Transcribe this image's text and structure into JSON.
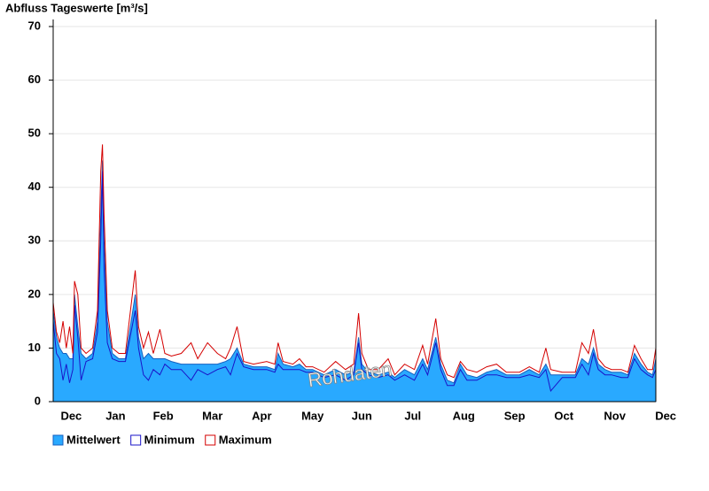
{
  "chart_data": {
    "type": "line",
    "title": "Abfluss Tageswerte [m³/s]",
    "annotation": "Rohdaten",
    "x": [
      0,
      2,
      4,
      6,
      8,
      10,
      12,
      13,
      15,
      17,
      20,
      24,
      27,
      29,
      30,
      31,
      33,
      36,
      40,
      44,
      50,
      52,
      55,
      58,
      61,
      65,
      68,
      72,
      78,
      84,
      88,
      94,
      100,
      105,
      108,
      112,
      116,
      122,
      130,
      135,
      137,
      140,
      146,
      150,
      154,
      158,
      165,
      172,
      178,
      183,
      186,
      188,
      192,
      198,
      204,
      208,
      214,
      220,
      225,
      228,
      233,
      236,
      240,
      244,
      248,
      252,
      258,
      264,
      270,
      276,
      284,
      290,
      296,
      300,
      303,
      310,
      318,
      322,
      326,
      329,
      332,
      336,
      340,
      346,
      350,
      354,
      358,
      362,
      365,
      367
    ],
    "series": [
      {
        "name": "Mittelwert",
        "color": "#29a9ff",
        "style": "area",
        "values": [
          17,
          12,
          10,
          9,
          9,
          8,
          8,
          20,
          14,
          9,
          8,
          9,
          15,
          35,
          45,
          30,
          15,
          9,
          8,
          8,
          20,
          12,
          8,
          9,
          8,
          8,
          8,
          7.5,
          7,
          7,
          7,
          7,
          7,
          7.5,
          8,
          10,
          7,
          6.5,
          6.5,
          6,
          9,
          7,
          6.5,
          7,
          6,
          6,
          5,
          6,
          5,
          5.5,
          12,
          7,
          5.5,
          5,
          5.5,
          4.5,
          6,
          5,
          8,
          6,
          12,
          7,
          4,
          3.5,
          7,
          5,
          4.5,
          5.5,
          6,
          5,
          5,
          6,
          5,
          7,
          5,
          5,
          5,
          8,
          7,
          10,
          7,
          6,
          5.5,
          5.5,
          5,
          9,
          7,
          5.5,
          5,
          8
        ]
      },
      {
        "name": "Minimum",
        "color": "#1a14c8",
        "style": "line",
        "values": [
          15,
          9,
          8,
          4,
          7,
          3.5,
          6,
          18,
          12,
          4,
          7.5,
          8,
          13,
          30,
          43,
          25,
          11,
          8,
          7.5,
          7.5,
          17,
          10,
          5,
          4,
          6,
          5,
          7,
          6,
          6,
          4,
          6,
          5,
          6,
          6.5,
          5,
          9,
          6.5,
          6,
          6,
          5.5,
          7,
          6,
          6,
          6,
          5.5,
          5.5,
          4.5,
          5,
          4,
          5,
          11,
          6,
          5,
          4.5,
          5,
          4,
          5,
          4,
          7,
          5,
          11,
          6,
          3,
          3,
          6,
          4,
          4,
          5,
          5,
          4.5,
          4.5,
          5,
          4.5,
          6,
          2,
          4.5,
          4.5,
          7,
          5,
          9,
          6,
          5,
          5,
          4.5,
          4.5,
          8,
          6,
          5,
          4.5,
          6
        ]
      },
      {
        "name": "Maximum",
        "color": "#d40000",
        "style": "line",
        "values": [
          18.5,
          13,
          11,
          15,
          10,
          14,
          9,
          22.5,
          20,
          10,
          9,
          10,
          17,
          43,
          48,
          35,
          17,
          10,
          9,
          9,
          24.5,
          14,
          10,
          13,
          9,
          13.5,
          9,
          8.5,
          9,
          11,
          8,
          11,
          9,
          8,
          10,
          14,
          7.5,
          7,
          7.5,
          7,
          11,
          7.5,
          7,
          8,
          6.5,
          6.5,
          5.5,
          7.5,
          6,
          7,
          16.5,
          9,
          6,
          6,
          8,
          5,
          7,
          6,
          10.5,
          7,
          15.5,
          8,
          5,
          4.5,
          7.5,
          6,
          5.5,
          6.5,
          7,
          5.5,
          5.5,
          6.5,
          5.5,
          10,
          6,
          5.5,
          5.5,
          11,
          9,
          13.5,
          8,
          6.5,
          6,
          6,
          5.5,
          10.5,
          8,
          6,
          6,
          10
        ]
      }
    ],
    "xlim": [
      0,
      367
    ],
    "xticks": [
      {
        "value": 11,
        "label": "Dec"
      },
      {
        "value": 38,
        "label": "Jan"
      },
      {
        "value": 67,
        "label": "Feb"
      },
      {
        "value": 97,
        "label": "Mar"
      },
      {
        "value": 127,
        "label": "Apr"
      },
      {
        "value": 158,
        "label": "May"
      },
      {
        "value": 188,
        "label": "Jun"
      },
      {
        "value": 219,
        "label": "Jul"
      },
      {
        "value": 250,
        "label": "Aug"
      },
      {
        "value": 281,
        "label": "Sep"
      },
      {
        "value": 311,
        "label": "Oct"
      },
      {
        "value": 342,
        "label": "Nov"
      },
      {
        "value": 373,
        "label": "Dec"
      }
    ],
    "ylim": [
      0,
      70
    ],
    "yticks": [
      0,
      10,
      20,
      30,
      40,
      50,
      60,
      70
    ],
    "grid": true,
    "legend": "bottom-left"
  }
}
